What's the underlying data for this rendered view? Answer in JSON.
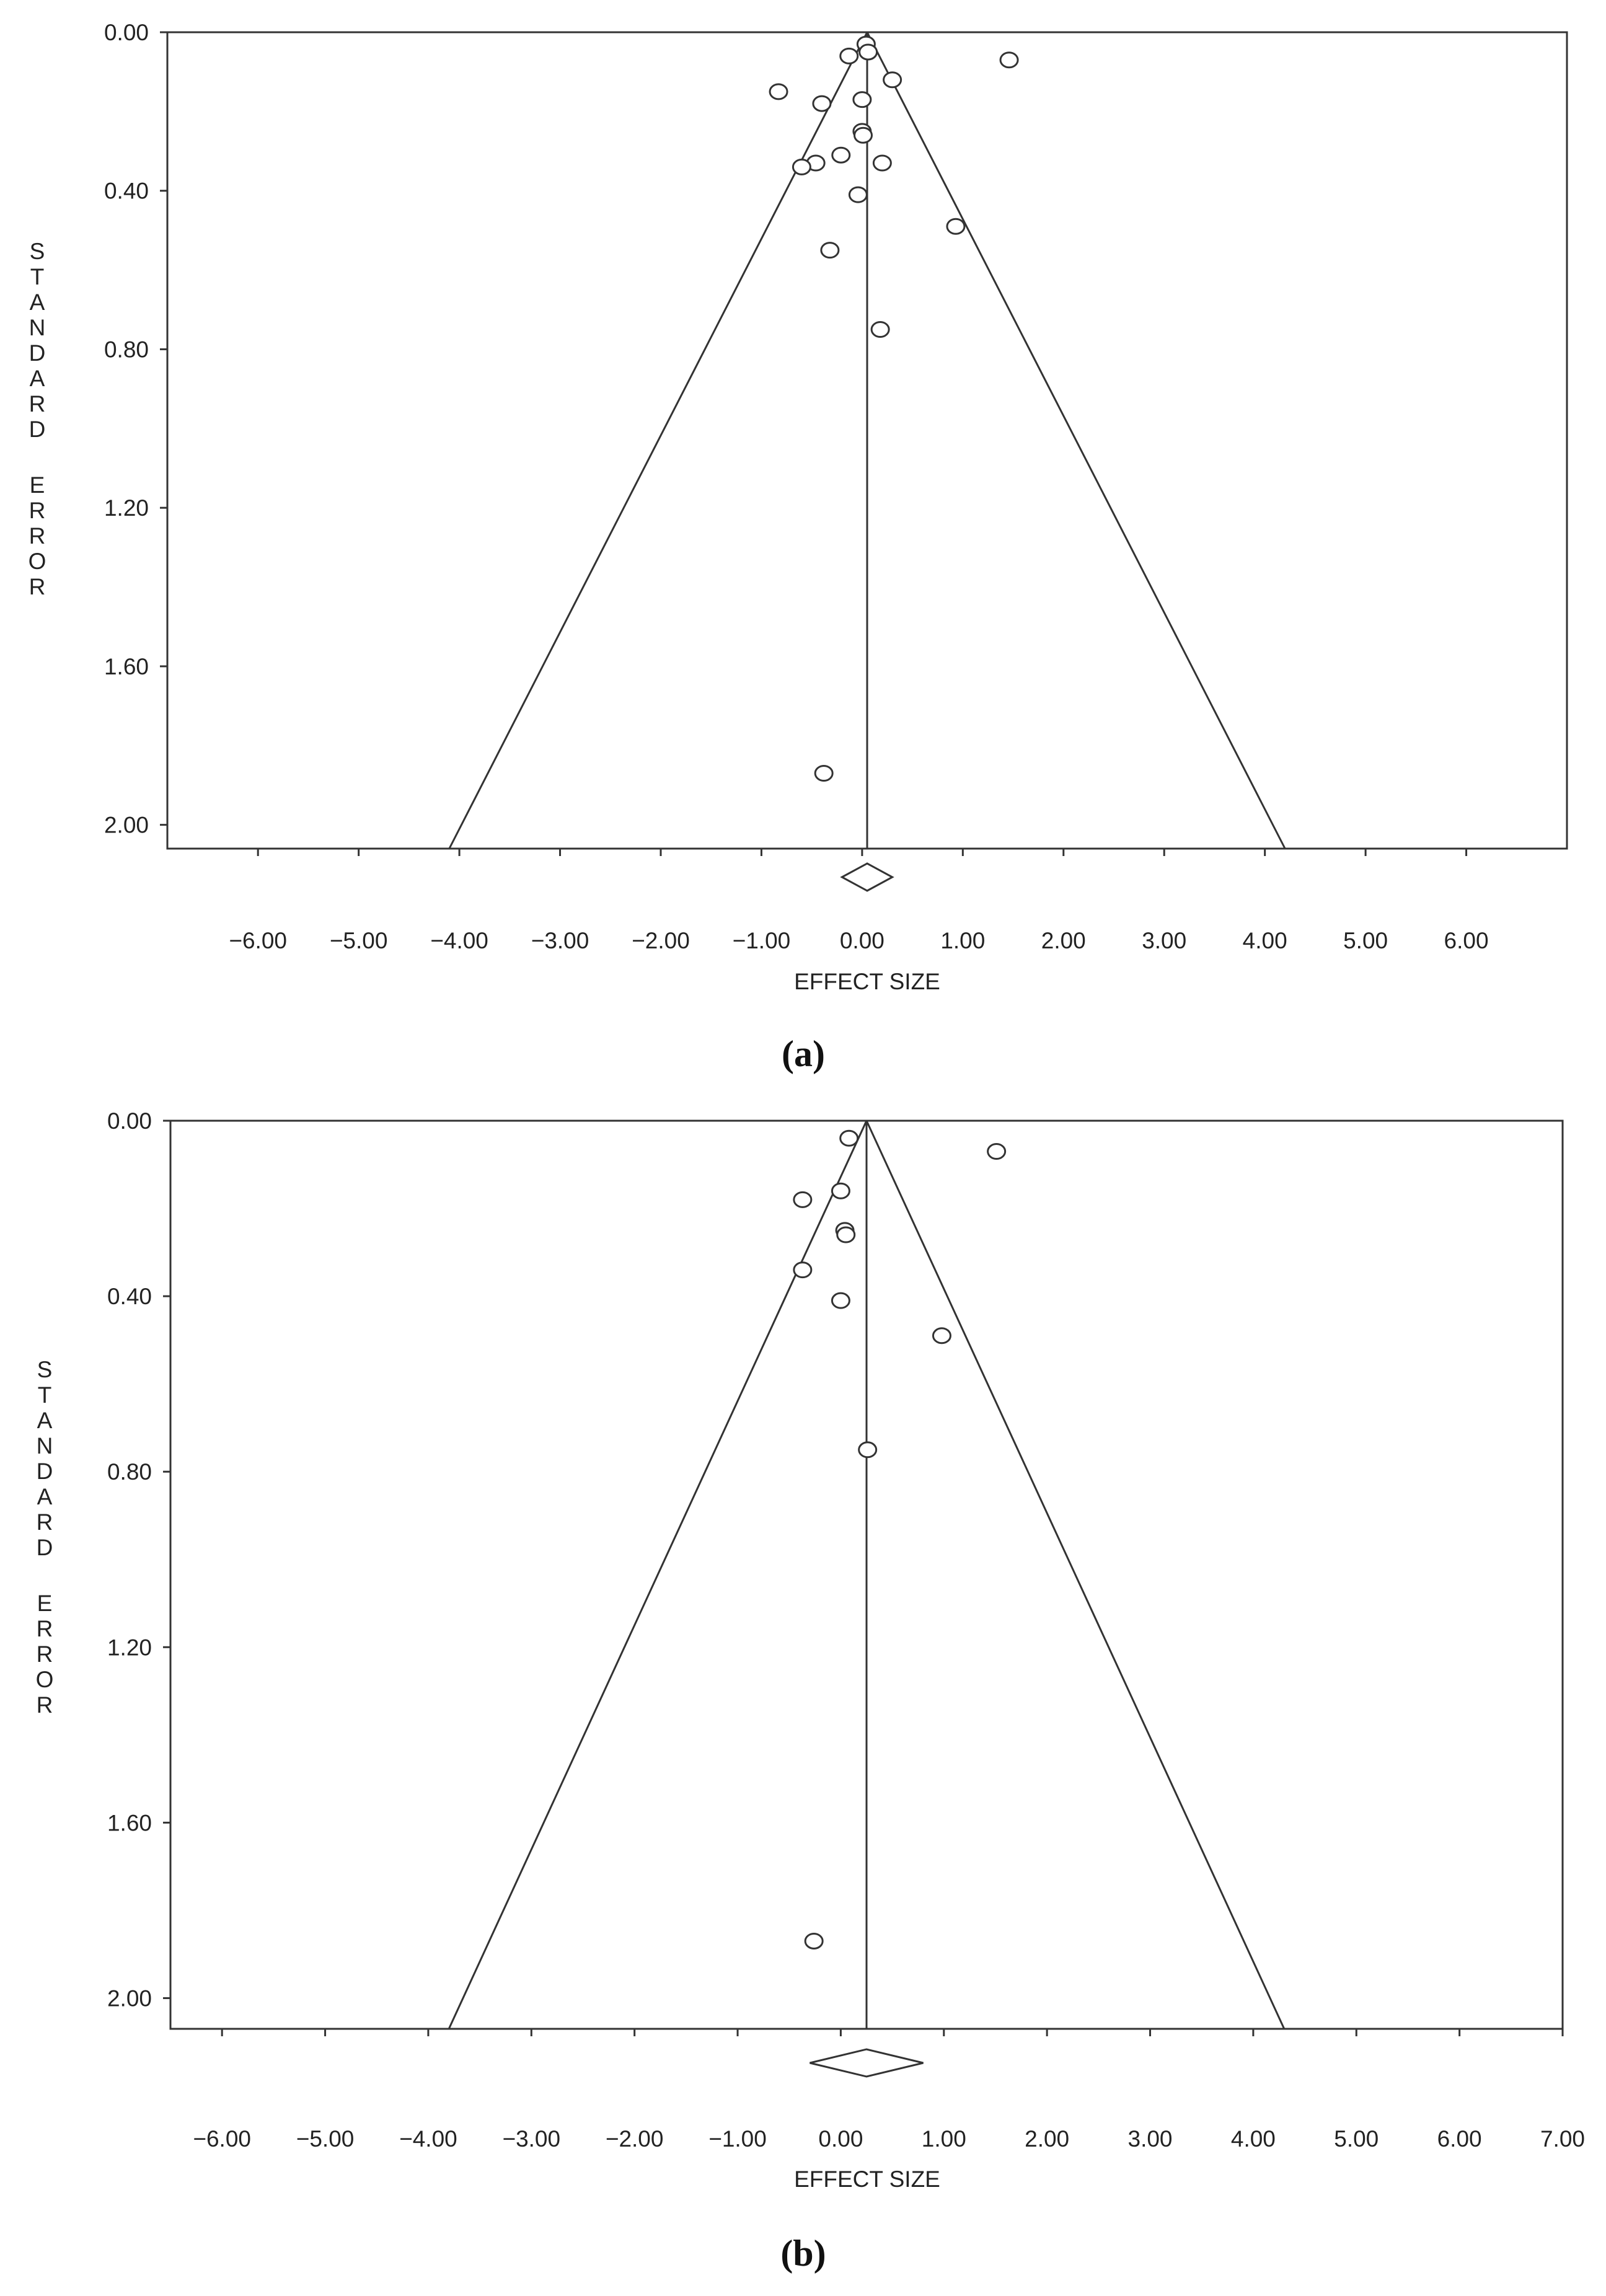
{
  "chart_data": [
    {
      "panel": "a",
      "type": "scatter",
      "caption": "(a)",
      "xlabel": "EFFECT SIZE",
      "ylabel": "STANDARD ERROR",
      "xlim": [
        -6.9,
        7.0
      ],
      "ylim": [
        0.0,
        2.06
      ],
      "y_inverted": true,
      "x_ticks": [
        "−6.00",
        "−5.00",
        "−4.00",
        "−3.00",
        "−2.00",
        "−1.00",
        "0.00",
        "1.00",
        "2.00",
        "3.00",
        "4.00",
        "5.00",
        "6.00"
      ],
      "x_tick_values": [
        -6,
        -5,
        -4,
        -3,
        -2,
        -1,
        0,
        1,
        2,
        3,
        4,
        5,
        6
      ],
      "y_ticks": [
        "0.00",
        "0.40",
        "0.80",
        "1.20",
        "1.60",
        "2.00"
      ],
      "y_tick_values": [
        0.0,
        0.4,
        0.8,
        1.2,
        1.6,
        2.0
      ],
      "pooled_effect": 0.05,
      "funnel_bottom_x": [
        -4.1,
        4.2
      ],
      "summary_diamond": [
        -0.2,
        0.05,
        0.3
      ],
      "points": [
        {
          "x": 0.04,
          "y": 0.03
        },
        {
          "x": 0.06,
          "y": 0.05
        },
        {
          "x": -0.13,
          "y": 0.06
        },
        {
          "x": 1.46,
          "y": 0.07
        },
        {
          "x": 0.3,
          "y": 0.12
        },
        {
          "x": -0.83,
          "y": 0.15
        },
        {
          "x": -0.4,
          "y": 0.18
        },
        {
          "x": 0.0,
          "y": 0.17
        },
        {
          "x": 0.0,
          "y": 0.25
        },
        {
          "x": 0.01,
          "y": 0.26
        },
        {
          "x": -0.21,
          "y": 0.31
        },
        {
          "x": -0.46,
          "y": 0.33
        },
        {
          "x": -0.6,
          "y": 0.34
        },
        {
          "x": 0.2,
          "y": 0.33
        },
        {
          "x": -0.04,
          "y": 0.41
        },
        {
          "x": 0.93,
          "y": 0.49
        },
        {
          "x": -0.32,
          "y": 0.55
        },
        {
          "x": 0.18,
          "y": 0.75
        },
        {
          "x": -0.38,
          "y": 1.87
        }
      ]
    },
    {
      "panel": "b",
      "type": "scatter",
      "caption": "(b)",
      "xlabel": "EFFECT SIZE",
      "ylabel": "STANDARD ERROR",
      "xlim": [
        -6.5,
        7.0
      ],
      "ylim": [
        0.0,
        2.07
      ],
      "y_inverted": true,
      "x_ticks": [
        "−6.00",
        "−5.00",
        "−4.00",
        "−3.00",
        "−2.00",
        "−1.00",
        "0.00",
        "1.00",
        "2.00",
        "3.00",
        "4.00",
        "5.00",
        "6.00",
        "7.00"
      ],
      "x_tick_values": [
        -6,
        -5,
        -4,
        -3,
        -2,
        -1,
        0,
        1,
        2,
        3,
        4,
        5,
        6,
        7
      ],
      "y_ticks": [
        "0.00",
        "0.40",
        "0.80",
        "1.20",
        "1.60",
        "2.00"
      ],
      "y_tick_values": [
        0.0,
        0.4,
        0.8,
        1.2,
        1.6,
        2.0
      ],
      "pooled_effect": 0.25,
      "funnel_bottom_x": [
        -3.8,
        4.3
      ],
      "summary_diamond": [
        -0.3,
        0.25,
        0.8
      ],
      "points": [
        {
          "x": 0.08,
          "y": 0.04
        },
        {
          "x": 1.51,
          "y": 0.07
        },
        {
          "x": 0.0,
          "y": 0.16
        },
        {
          "x": -0.37,
          "y": 0.18
        },
        {
          "x": 0.04,
          "y": 0.25
        },
        {
          "x": 0.05,
          "y": 0.26
        },
        {
          "x": -0.37,
          "y": 0.34
        },
        {
          "x": 0.0,
          "y": 0.41
        },
        {
          "x": 0.98,
          "y": 0.49
        },
        {
          "x": 0.26,
          "y": 0.75
        },
        {
          "x": -0.26,
          "y": 1.87
        }
      ]
    }
  ]
}
